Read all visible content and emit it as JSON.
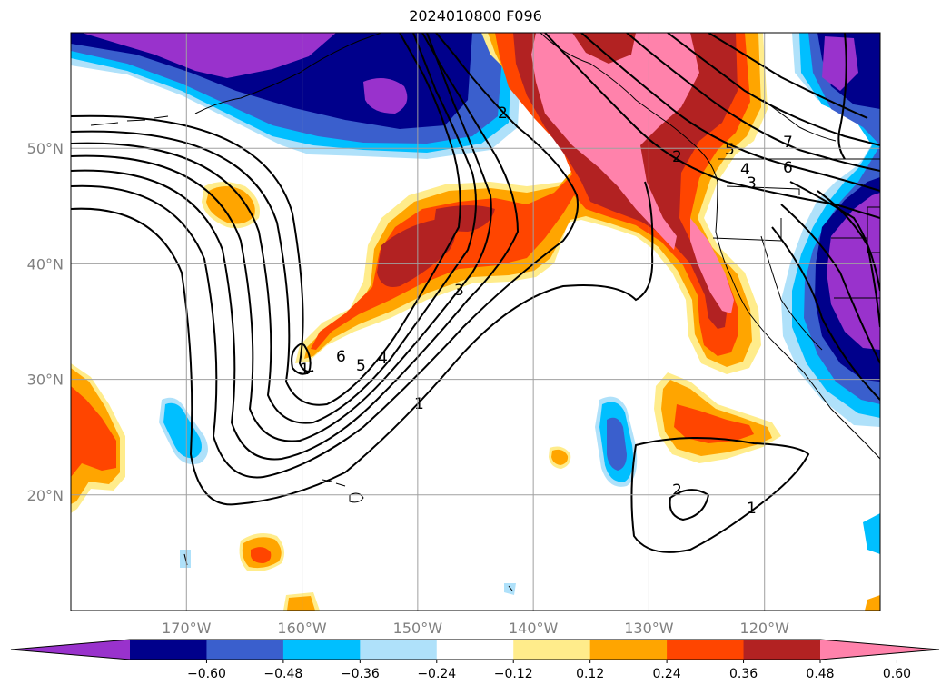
{
  "title": "2024010800 F096",
  "chart_data": {
    "type": "contour-map",
    "title": "2024010800 F096",
    "projection": "lat-lon",
    "lon_range": [
      -180,
      -110
    ],
    "lat_range": [
      10,
      60
    ],
    "lon_ticks": [
      {
        "value": -170,
        "label": "170°W"
      },
      {
        "value": -160,
        "label": "160°W"
      },
      {
        "value": -150,
        "label": "150°W"
      },
      {
        "value": -140,
        "label": "140°W"
      },
      {
        "value": -130,
        "label": "130°W"
      },
      {
        "value": -120,
        "label": "120°W"
      }
    ],
    "lat_ticks": [
      {
        "value": 20,
        "label": "20°N"
      },
      {
        "value": 30,
        "label": "30°N"
      },
      {
        "value": 40,
        "label": "40°N"
      },
      {
        "value": 50,
        "label": "50°N"
      }
    ],
    "grid": true,
    "colorbar": {
      "orientation": "horizontal",
      "extend": "both",
      "levels": [
        -0.72,
        -0.6,
        -0.48,
        -0.36,
        -0.24,
        -0.12,
        0.12,
        0.24,
        0.36,
        0.48,
        0.6,
        0.72
      ],
      "colors": [
        "#9932cc",
        "#00008b",
        "#3a5fcd",
        "#00bfff",
        "#afe1fa",
        "#ffffff",
        "#ffec8b",
        "#ffa500",
        "#ff4500",
        "#b22222",
        "#ff82ab"
      ],
      "tick_labels": [
        "−0.60",
        "−0.48",
        "−0.36",
        "−0.24",
        "−0.12",
        "0.12",
        "0.24",
        "0.36",
        "0.48",
        "0.60"
      ]
    },
    "contour_labels": [
      "1",
      "2",
      "3",
      "4",
      "5",
      "6",
      "7"
    ]
  }
}
